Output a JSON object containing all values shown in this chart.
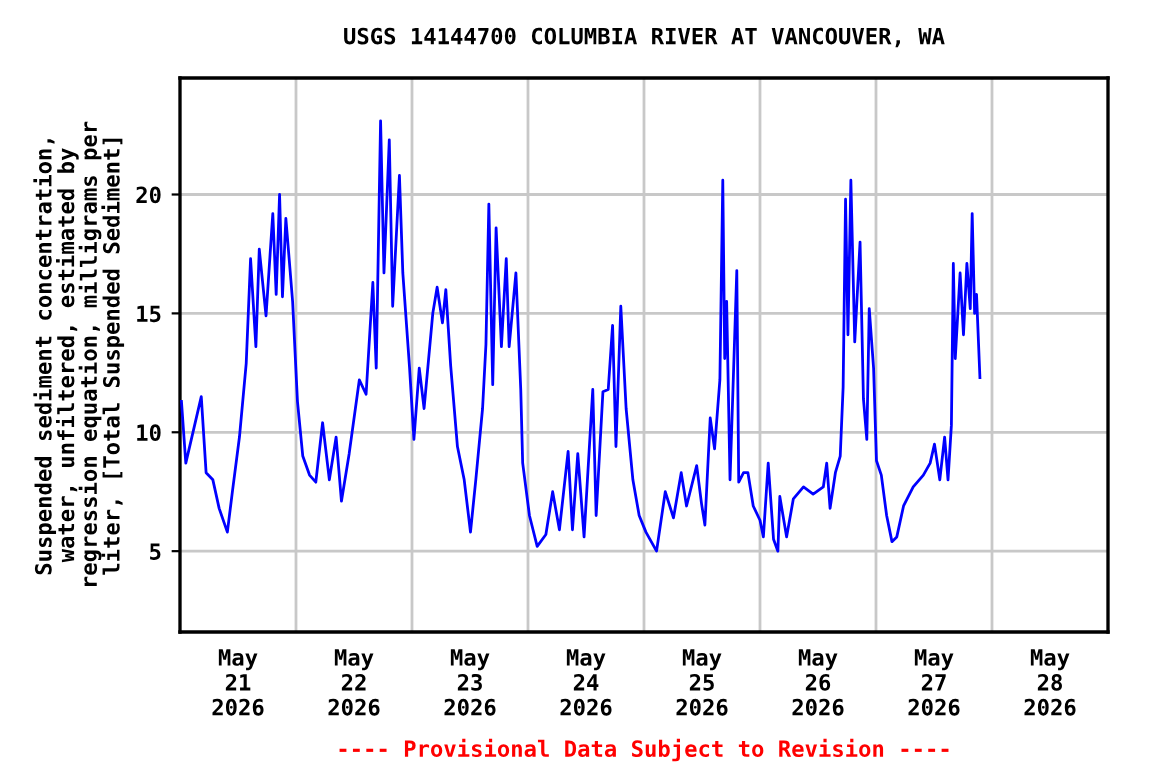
{
  "chart_data": {
    "type": "line",
    "title": "USGS 14144700 COLUMBIA RIVER AT VANCOUVER, WA",
    "ylabel": "Suspended sediment concentration,\nwater, unfiltered, estimated by\nregression equation, milligrams per\nliter, [Total Suspended Sediment]",
    "annotations": [
      "---- Provisional Data Subject to Revision ----"
    ],
    "xlim": [
      "2026-05-21T00:00",
      "2026-05-29T00:00"
    ],
    "ylim": [
      1.6,
      24.9
    ],
    "xticks": [
      {
        "value": "2026-05-21T12:00",
        "label": "May\n21\n2026"
      },
      {
        "value": "2026-05-22T00:00",
        "label": null
      },
      {
        "value": "2026-05-22T12:00",
        "label": "May\n22\n2026"
      },
      {
        "value": "2026-05-23T00:00",
        "label": null
      },
      {
        "value": "2026-05-23T12:00",
        "label": "May\n23\n2026"
      },
      {
        "value": "2026-05-24T00:00",
        "label": null
      },
      {
        "value": "2026-05-24T12:00",
        "label": "May\n24\n2026"
      },
      {
        "value": "2026-05-25T00:00",
        "label": null
      },
      {
        "value": "2026-05-25T12:00",
        "label": "May\n25\n2026"
      },
      {
        "value": "2026-05-26T00:00",
        "label": null
      },
      {
        "value": "2026-05-26T12:00",
        "label": "May\n26\n2026"
      },
      {
        "value": "2026-05-27T00:00",
        "label": null
      },
      {
        "value": "2026-05-27T12:00",
        "label": "May\n27\n2026"
      },
      {
        "value": "2026-05-28T00:00",
        "label": null
      },
      {
        "value": "2026-05-28T12:00",
        "label": "May\n28\n2026"
      }
    ],
    "yticks": [
      5,
      10,
      15,
      20
    ],
    "grid": true,
    "line_style": "solid",
    "marker": "none",
    "series": [
      {
        "color": "#0000ff",
        "x": [
          "2026-05-21T00:18",
          "2026-05-21T01:12",
          "2026-05-21T04:24",
          "2026-05-21T05:24",
          "2026-05-21T06:48",
          "2026-05-21T08:06",
          "2026-05-21T09:48",
          "2026-05-21T10:54",
          "2026-05-21T12:18",
          "2026-05-21T13:42",
          "2026-05-21T14:36",
          "2026-05-21T15:42",
          "2026-05-21T16:24",
          "2026-05-21T17:48",
          "2026-05-21T19:12",
          "2026-05-21T19:54",
          "2026-05-21T20:36",
          "2026-05-21T21:12",
          "2026-05-21T21:54",
          "2026-05-21T23:18",
          "2026-05-22T00:18",
          "2026-05-22T01:24",
          "2026-05-22T02:48",
          "2026-05-22T04:06",
          "2026-05-22T05:30",
          "2026-05-22T06:54",
          "2026-05-22T08:18",
          "2026-05-22T09:24",
          "2026-05-22T11:00",
          "2026-05-22T13:06",
          "2026-05-22T14:30",
          "2026-05-22T15:54",
          "2026-05-22T16:36",
          "2026-05-22T17:30",
          "2026-05-22T18:12",
          "2026-05-22T19:18",
          "2026-05-22T20:00",
          "2026-05-22T21:24",
          "2026-05-22T22:06",
          "2026-05-22T23:30",
          "2026-05-23T00:24",
          "2026-05-23T01:30",
          "2026-05-23T02:30",
          "2026-05-23T04:18",
          "2026-05-23T05:12",
          "2026-05-23T06:18",
          "2026-05-23T07:00",
          "2026-05-23T08:00",
          "2026-05-23T09:24",
          "2026-05-23T10:48",
          "2026-05-23T12:06",
          "2026-05-23T13:12",
          "2026-05-23T14:36",
          "2026-05-23T15:18",
          "2026-05-23T15:54",
          "2026-05-23T16:42",
          "2026-05-23T17:24",
          "2026-05-23T18:30",
          "2026-05-23T19:30",
          "2026-05-23T20:06",
          "2026-05-23T21:30",
          "2026-05-23T22:30",
          "2026-05-23T22:54",
          "2026-05-24T00:18",
          "2026-05-24T01:54",
          "2026-05-24T03:42",
          "2026-05-24T05:06",
          "2026-05-24T06:30",
          "2026-05-24T08:18",
          "2026-05-24T09:12",
          "2026-05-24T10:18",
          "2026-05-24T11:36",
          "2026-05-24T13:24",
          "2026-05-24T14:06",
          "2026-05-24T15:30",
          "2026-05-24T16:36",
          "2026-05-24T17:30",
          "2026-05-24T18:12",
          "2026-05-24T19:12",
          "2026-05-24T20:18",
          "2026-05-24T21:42",
          "2026-05-24T23:00",
          "2026-05-25T00:24",
          "2026-05-25T02:36",
          "2026-05-25T04:24",
          "2026-05-25T06:06",
          "2026-05-25T07:42",
          "2026-05-25T08:48",
          "2026-05-25T10:54",
          "2026-05-25T11:54",
          "2026-05-25T12:36",
          "2026-05-25T13:42",
          "2026-05-25T14:36",
          "2026-05-25T15:42",
          "2026-05-25T16:18",
          "2026-05-25T16:42",
          "2026-05-25T17:06",
          "2026-05-25T17:48",
          "2026-05-25T19:12",
          "2026-05-25T19:36",
          "2026-05-25T20:36",
          "2026-05-25T21:30",
          "2026-05-25T22:36",
          "2026-05-26T00:00",
          "2026-05-26T00:42",
          "2026-05-26T01:42",
          "2026-05-26T02:48",
          "2026-05-26T03:42",
          "2026-05-26T04:06",
          "2026-05-26T05:30",
          "2026-05-26T06:54",
          "2026-05-26T09:00",
          "2026-05-26T11:00",
          "2026-05-26T13:06",
          "2026-05-26T13:48",
          "2026-05-26T14:30",
          "2026-05-26T15:36",
          "2026-05-26T16:36",
          "2026-05-26T17:12",
          "2026-05-26T17:42",
          "2026-05-26T18:12",
          "2026-05-26T18:48",
          "2026-05-26T19:36",
          "2026-05-26T20:42",
          "2026-05-26T21:24",
          "2026-05-26T22:06",
          "2026-05-26T22:36",
          "2026-05-26T23:30",
          "2026-05-27T00:06",
          "2026-05-27T01:06",
          "2026-05-27T02:12",
          "2026-05-27T03:18",
          "2026-05-27T04:18",
          "2026-05-27T05:42",
          "2026-05-27T07:42",
          "2026-05-27T09:48",
          "2026-05-27T11:12",
          "2026-05-27T12:06",
          "2026-05-27T13:12",
          "2026-05-27T14:12",
          "2026-05-27T14:54",
          "2026-05-27T15:36",
          "2026-05-27T16:00",
          "2026-05-27T16:24",
          "2026-05-27T17:24",
          "2026-05-27T18:06",
          "2026-05-27T18:48",
          "2026-05-27T19:30",
          "2026-05-27T19:54",
          "2026-05-27T20:24",
          "2026-05-27T20:48",
          "2026-05-27T21:30"
        ],
        "values": [
          11.3,
          8.7,
          11.5,
          8.3,
          8.0,
          6.8,
          5.8,
          7.6,
          9.8,
          12.9,
          17.3,
          13.6,
          17.7,
          14.9,
          19.2,
          15.8,
          20.0,
          15.7,
          19.0,
          15.5,
          11.3,
          9.0,
          8.2,
          7.9,
          10.4,
          8.0,
          9.8,
          7.1,
          9.1,
          12.2,
          11.6,
          16.3,
          12.7,
          23.1,
          16.7,
          22.3,
          15.3,
          20.8,
          16.7,
          12.7,
          9.7,
          12.7,
          11.0,
          15.0,
          16.1,
          14.6,
          16.0,
          12.8,
          9.4,
          8.0,
          5.8,
          8.0,
          11.0,
          13.7,
          19.6,
          12.0,
          18.6,
          13.6,
          17.3,
          13.6,
          16.7,
          11.8,
          8.7,
          6.5,
          5.2,
          5.7,
          7.5,
          5.9,
          9.2,
          5.9,
          9.1,
          5.6,
          11.8,
          6.5,
          11.7,
          11.8,
          14.5,
          9.4,
          15.3,
          11.0,
          8.0,
          6.5,
          5.8,
          5.0,
          7.5,
          6.4,
          8.3,
          6.9,
          8.6,
          7.0,
          6.1,
          10.6,
          9.3,
          12.2,
          20.6,
          13.1,
          15.5,
          8.0,
          16.8,
          7.9,
          8.3,
          8.3,
          6.9,
          6.3,
          5.6,
          8.7,
          5.5,
          5.0,
          7.3,
          5.6,
          7.2,
          7.7,
          7.4,
          7.7,
          8.7,
          6.8,
          8.3,
          9.0,
          11.9,
          19.8,
          14.1,
          20.6,
          13.8,
          18.0,
          11.4,
          9.7,
          15.2,
          12.7,
          8.8,
          8.2,
          6.5,
          5.4,
          5.6,
          6.9,
          7.7,
          8.2,
          8.7,
          9.5,
          8.0,
          9.8,
          8.0,
          10.3,
          17.1,
          13.1,
          16.7,
          14.1,
          17.1,
          15.2,
          19.2,
          15.0,
          15.8,
          12.3
        ]
      }
    ]
  }
}
